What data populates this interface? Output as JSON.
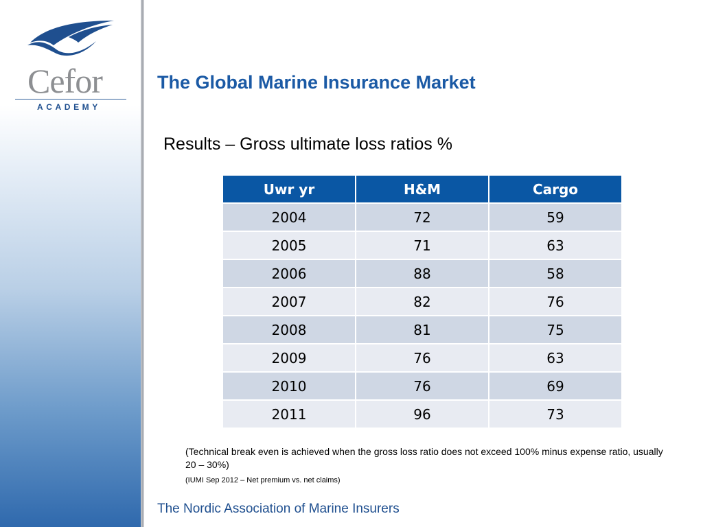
{
  "logo": {
    "word": "Cefor",
    "subtitle": "ACADEMY"
  },
  "header": {
    "title": "The Global Marine Insurance Market"
  },
  "subtitle": "Results –  Gross ultimate loss ratios %",
  "table": {
    "columns": [
      "Uwr yr",
      "H&M",
      "Cargo"
    ],
    "rows": [
      [
        "2004",
        "72",
        "59"
      ],
      [
        "2005",
        "71",
        "63"
      ],
      [
        "2006",
        "88",
        "58"
      ],
      [
        "2007",
        "82",
        "76"
      ],
      [
        "2008",
        "81",
        "75"
      ],
      [
        "2009",
        "76",
        "63"
      ],
      [
        "2010",
        "76",
        "69"
      ],
      [
        "2011",
        "96",
        "73"
      ]
    ]
  },
  "note": "(Technical break even is achieved when the gross loss ratio does not exceed 100% minus expense ratio, usually 20 – 30%)",
  "source": "(IUMI Sep 2012 – Net premium vs. net claims)",
  "footer": {
    "org": "The Nordic Association of Marine Insurers"
  },
  "colors": {
    "accent": "#1b5aa5",
    "table_header": "#0a57a4",
    "row_odd": "#cfd7e4",
    "row_even": "#e8ebf2"
  }
}
